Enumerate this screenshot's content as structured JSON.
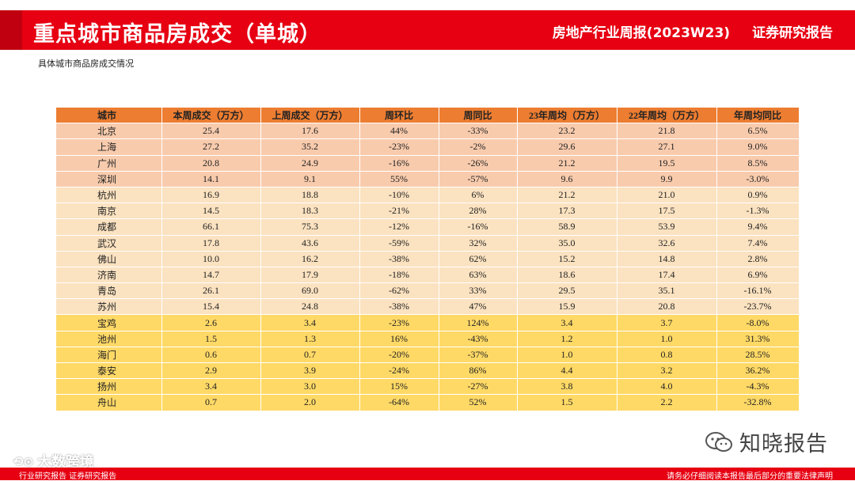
{
  "header": {
    "title": "重点城市商品房成交（单城）",
    "report": "房地产行业周报(2023W23)",
    "type": "证券研究报告"
  },
  "subtitle": "具体城市商品房成交情况",
  "table": {
    "headers": [
      "城市",
      "本周成交（万方）",
      "上周成交（万方）",
      "周环比",
      "周同比",
      "23年周均（万方）",
      "22年周均（万方）",
      "年周均同比"
    ],
    "rows": [
      [
        "北京",
        "25.4",
        "17.6",
        "44%",
        "-33%",
        "23.2",
        "21.8",
        "6.5%"
      ],
      [
        "上海",
        "27.2",
        "35.2",
        "-23%",
        "-2%",
        "29.6",
        "27.1",
        "9.0%"
      ],
      [
        "广州",
        "20.8",
        "24.9",
        "-16%",
        "-26%",
        "21.2",
        "19.5",
        "8.5%"
      ],
      [
        "深圳",
        "14.1",
        "9.1",
        "55%",
        "-57%",
        "9.6",
        "9.9",
        "-3.0%"
      ],
      [
        "杭州",
        "16.9",
        "18.8",
        "-10%",
        "6%",
        "21.2",
        "21.0",
        "0.9%"
      ],
      [
        "南京",
        "14.5",
        "18.3",
        "-21%",
        "28%",
        "17.3",
        "17.5",
        "-1.3%"
      ],
      [
        "成都",
        "66.1",
        "75.3",
        "-12%",
        "-16%",
        "58.9",
        "53.9",
        "9.4%"
      ],
      [
        "武汉",
        "17.8",
        "43.6",
        "-59%",
        "32%",
        "35.0",
        "32.6",
        "7.4%"
      ],
      [
        "佛山",
        "10.0",
        "16.2",
        "-38%",
        "62%",
        "15.2",
        "14.8",
        "2.8%"
      ],
      [
        "济南",
        "14.7",
        "17.9",
        "-18%",
        "63%",
        "18.6",
        "17.4",
        "6.9%"
      ],
      [
        "青岛",
        "26.1",
        "69.0",
        "-62%",
        "33%",
        "29.5",
        "35.1",
        "-16.1%"
      ],
      [
        "苏州",
        "15.4",
        "24.8",
        "-38%",
        "47%",
        "15.9",
        "20.8",
        "-23.7%"
      ],
      [
        "宝鸡",
        "2.6",
        "3.4",
        "-23%",
        "124%",
        "3.4",
        "3.7",
        "-8.0%"
      ],
      [
        "池州",
        "1.5",
        "1.3",
        "16%",
        "-43%",
        "1.2",
        "1.0",
        "31.3%"
      ],
      [
        "海门",
        "0.6",
        "0.7",
        "-20%",
        "-37%",
        "1.0",
        "0.8",
        "28.5%"
      ],
      [
        "泰安",
        "2.9",
        "3.9",
        "-24%",
        "86%",
        "4.4",
        "3.2",
        "36.2%"
      ],
      [
        "扬州",
        "3.4",
        "3.0",
        "15%",
        "-27%",
        "3.8",
        "4.0",
        "-4.3%"
      ],
      [
        "舟山",
        "0.7",
        "2.0",
        "-64%",
        "52%",
        "1.5",
        "2.2",
        "-32.8%"
      ]
    ],
    "row_groups": [
      "g1",
      "g1",
      "g1",
      "g1",
      "g2",
      "g2",
      "g2",
      "g2",
      "g2",
      "g2",
      "g2",
      "g2",
      "g3",
      "g3",
      "g3",
      "g3",
      "g3",
      "g3"
    ]
  },
  "watermarks": {
    "wechat": "知晓报告",
    "bigdata": "大数跨境"
  },
  "footer": {
    "left": "行业研究报告   证券研究报告",
    "right": "请务必仔细阅读本报告最后部分的重要法律声明"
  },
  "colors": {
    "brand_red": "#e60012",
    "header_row": "#ed7d31",
    "tier1": "#f8cbad",
    "tier2": "#fbe2c0",
    "tier3": "#ffd966"
  },
  "icons": [
    "wechat-icon",
    "bigdata-logo-icon"
  ]
}
